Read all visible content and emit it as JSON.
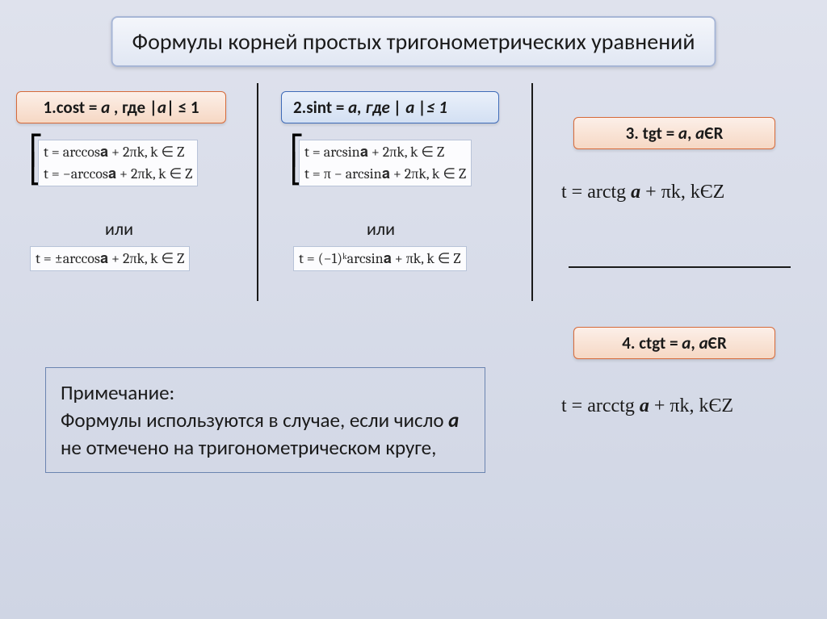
{
  "title": "Формулы корней простых тригонометрических уравнений",
  "col1": {
    "header_prefix": "1.cost = ",
    "header_var": "a",
    "header_suffix": " ,  где |",
    "header_var2": "a",
    "header_tail": "| ≤ 1",
    "sys_line1": "t = arccos𝐚 + 2πk, k ∈ Z",
    "sys_line2": "t = −arccos𝐚 + 2πk, k ∈ Z",
    "or": "или",
    "alt": "t = ±arccos𝐚 + 2πk, k ∈ Z"
  },
  "col2": {
    "header_prefix": "2.sint = ",
    "header_var": "a",
    "header_suffix": ",  где | ",
    "header_var2": "a",
    "header_tail": " |≤ 1",
    "sys_line1": "t = arcsin𝐚 + 2πk, k ∈ Z",
    "sys_line2": "t = π − arcsin𝐚 + 2πk, k ∈ Z",
    "or": "или",
    "alt": "t = (−1)ᵏarcsin𝐚 + πk, k ∈ Z"
  },
  "col3": {
    "header_prefix": "3. tgt = ",
    "header_var": "a",
    "header_suffix": ",  ",
    "header_var2": "a",
    "header_tail": "ЄR",
    "formula_prefix": "t = arctg ",
    "formula_var": "a",
    "formula_suffix": " + πk, kЄZ"
  },
  "col4": {
    "header_prefix": "4. ctgt = ",
    "header_var": "a",
    "header_suffix": ",  ",
    "header_var2": "a",
    "header_tail": "ЄR",
    "formula_prefix": "t = arcctg ",
    "formula_var": "a",
    "formula_suffix": " + πk, kЄZ"
  },
  "note": {
    "line1": "Примечание:",
    "line2_a": "Формулы используются в случае, если число ",
    "line2_var": "a",
    "line2_b": "  не отмечено на тригонометрическом круге,"
  },
  "colors": {
    "background_top": "#dfe2ed",
    "background_bottom": "#cfd5e4",
    "title_border": "#a7b6d6",
    "pink_border": "#d66a3a",
    "blue_border": "#3e6bb8",
    "formula_border": "#b8c3d8",
    "note_border": "#6b84b0",
    "text": "#1a1a1a"
  }
}
